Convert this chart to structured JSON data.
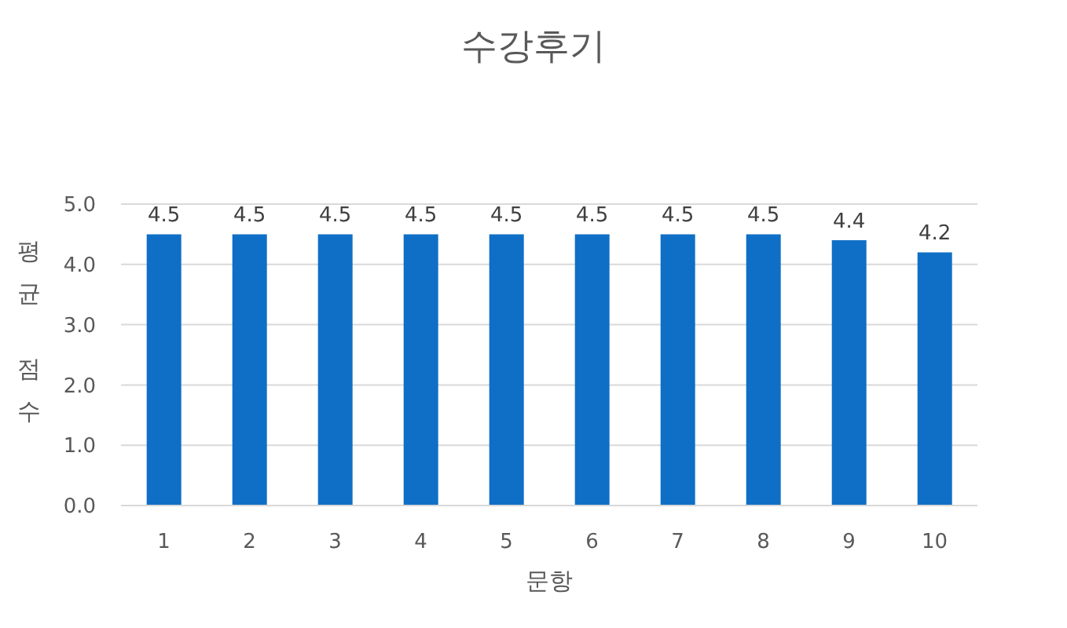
{
  "chart_data": {
    "type": "bar",
    "title": "수강후기",
    "xlabel": "문항",
    "ylabel": "평균 점수",
    "categories": [
      "1",
      "2",
      "3",
      "4",
      "5",
      "6",
      "7",
      "8",
      "9",
      "10"
    ],
    "values": [
      4.5,
      4.5,
      4.5,
      4.5,
      4.5,
      4.5,
      4.5,
      4.5,
      4.4,
      4.2
    ],
    "color": "#0f6fc6",
    "ylim": [
      0,
      5
    ],
    "yticks": [
      {
        "value": 0,
        "label": "0.0"
      },
      {
        "value": 1,
        "label": "1.0"
      },
      {
        "value": 2,
        "label": "2.0"
      },
      {
        "value": 3,
        "label": "3.0"
      },
      {
        "value": 4,
        "label": "4.0"
      },
      {
        "value": 5,
        "label": "5.0"
      }
    ],
    "grid": "y",
    "data_labels": true
  }
}
